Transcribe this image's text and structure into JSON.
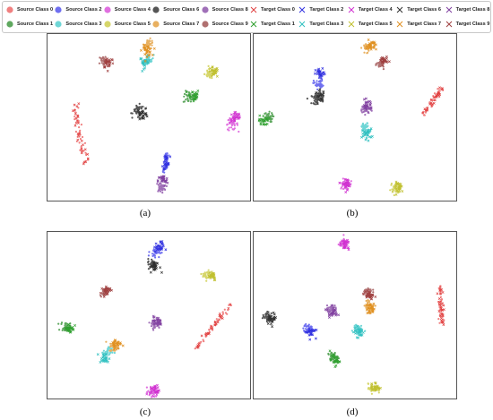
{
  "legend": {
    "entries": [
      {
        "label": "Source Class 0",
        "color": "#f08080",
        "marker": "dot"
      },
      {
        "label": "Source Class 1",
        "color": "#5fa85f",
        "marker": "dot"
      },
      {
        "label": "Source Class 2",
        "color": "#6f6ff0",
        "marker": "dot"
      },
      {
        "label": "Source Class 3",
        "color": "#6fd6d6",
        "marker": "dot"
      },
      {
        "label": "Source Class 4",
        "color": "#e070e0",
        "marker": "dot"
      },
      {
        "label": "Source Class 5",
        "color": "#d6d66a",
        "marker": "dot"
      },
      {
        "label": "Source Class 6",
        "color": "#555555",
        "marker": "dot"
      },
      {
        "label": "Source Class 7",
        "color": "#e8b060",
        "marker": "dot"
      },
      {
        "label": "Source Class 8",
        "color": "#a070b8",
        "marker": "dot"
      },
      {
        "label": "Source Class 9",
        "color": "#b07070",
        "marker": "dot"
      },
      {
        "label": "Target Class 0",
        "color": "#e04040",
        "marker": "x"
      },
      {
        "label": "Target Class 1",
        "color": "#30a030",
        "marker": "x"
      },
      {
        "label": "Target Class 2",
        "color": "#3030e0",
        "marker": "x"
      },
      {
        "label": "Target Class 3",
        "color": "#30c0c0",
        "marker": "x"
      },
      {
        "label": "Target Class 4",
        "color": "#d030d0",
        "marker": "x"
      },
      {
        "label": "Target Class 5",
        "color": "#c0c030",
        "marker": "x"
      },
      {
        "label": "Target Class 6",
        "color": "#303030",
        "marker": "x"
      },
      {
        "label": "Target Class 7",
        "color": "#e09020",
        "marker": "x"
      },
      {
        "label": "Target Class 8",
        "color": "#8040a0",
        "marker": "x"
      },
      {
        "label": "Target Class 9",
        "color": "#a04040",
        "marker": "x"
      }
    ]
  },
  "captions": {
    "a": "(a)",
    "b": "(b)",
    "c": "(c)",
    "d": "(d)"
  },
  "chart_data": [
    {
      "type": "scatter",
      "panel": "a",
      "xlim": [
        0,
        1
      ],
      "ylim": [
        0,
        1
      ],
      "grid": false,
      "clusters": [
        {
          "cls": 0,
          "src": [
            0.13,
            0.59
          ],
          "tgt": [
            0.19,
            0.22
          ],
          "spread": 0.028
        },
        {
          "cls": 1,
          "src": [
            0.7,
            0.62
          ],
          "tgt": [
            0.72,
            0.63
          ],
          "spread": 0.015
        },
        {
          "cls": 2,
          "src": [
            0.58,
            0.18
          ],
          "tgt": [
            0.59,
            0.28
          ],
          "spread": 0.015
        },
        {
          "cls": 3,
          "src": [
            0.5,
            0.85
          ],
          "tgt": [
            0.48,
            0.83
          ],
          "spread": 0.012
        },
        {
          "cls": 4,
          "src": [
            0.91,
            0.46
          ],
          "tgt": [
            0.93,
            0.5
          ],
          "spread": 0.015
        },
        {
          "cls": 5,
          "src": [
            0.8,
            0.76
          ],
          "tgt": [
            0.82,
            0.77
          ],
          "spread": 0.012
        },
        {
          "cls": 6,
          "src": [
            0.45,
            0.54
          ],
          "tgt": [
            0.47,
            0.52
          ],
          "spread": 0.014
        },
        {
          "cls": 7,
          "src": [
            0.5,
            0.94
          ],
          "tgt": [
            0.49,
            0.9
          ],
          "spread": 0.012
        },
        {
          "cls": 8,
          "src": [
            0.56,
            0.08
          ],
          "tgt": [
            0.57,
            0.12
          ],
          "spread": 0.012
        },
        {
          "cls": 9,
          "src": [
            0.28,
            0.84
          ],
          "tgt": [
            0.3,
            0.83
          ],
          "spread": 0.014
        }
      ]
    },
    {
      "type": "scatter",
      "panel": "b",
      "xlim": [
        0,
        1
      ],
      "ylim": [
        0,
        1
      ],
      "grid": false,
      "clusters": [
        {
          "cls": 0,
          "src": [
            0.84,
            0.52
          ],
          "tgt": [
            0.93,
            0.68
          ],
          "spread": 0.02
        },
        {
          "cls": 1,
          "src": [
            0.07,
            0.5
          ],
          "tgt": [
            0.05,
            0.48
          ],
          "spread": 0.012
        },
        {
          "cls": 2,
          "src": [
            0.32,
            0.7
          ],
          "tgt": [
            0.33,
            0.76
          ],
          "spread": 0.012
        },
        {
          "cls": 3,
          "src": [
            0.55,
            0.44
          ],
          "tgt": [
            0.56,
            0.4
          ],
          "spread": 0.012
        },
        {
          "cls": 4,
          "src": [
            0.45,
            0.1
          ],
          "tgt": [
            0.46,
            0.1
          ],
          "spread": 0.012
        },
        {
          "cls": 5,
          "src": [
            0.7,
            0.07
          ],
          "tgt": [
            0.72,
            0.08
          ],
          "spread": 0.012
        },
        {
          "cls": 6,
          "src": [
            0.31,
            0.61
          ],
          "tgt": [
            0.33,
            0.63
          ],
          "spread": 0.012
        },
        {
          "cls": 7,
          "src": [
            0.56,
            0.92
          ],
          "tgt": [
            0.58,
            0.93
          ],
          "spread": 0.012
        },
        {
          "cls": 8,
          "src": [
            0.55,
            0.55
          ],
          "tgt": [
            0.56,
            0.57
          ],
          "spread": 0.012
        },
        {
          "cls": 9,
          "src": [
            0.63,
            0.82
          ],
          "tgt": [
            0.64,
            0.84
          ],
          "spread": 0.01
        }
      ]
    },
    {
      "type": "scatter",
      "panel": "c",
      "xlim": [
        0,
        1
      ],
      "ylim": [
        0,
        1
      ],
      "grid": false,
      "clusters": [
        {
          "cls": 0,
          "src": [
            0.73,
            0.3
          ],
          "tgt": [
            0.9,
            0.56
          ],
          "spread": 0.015
        },
        {
          "cls": 1,
          "src": [
            0.09,
            0.43
          ],
          "tgt": [
            0.11,
            0.42
          ],
          "spread": 0.012
        },
        {
          "cls": 2,
          "src": [
            0.53,
            0.88
          ],
          "tgt": [
            0.55,
            0.91
          ],
          "spread": 0.012
        },
        {
          "cls": 3,
          "src": [
            0.3,
            0.28
          ],
          "tgt": [
            0.28,
            0.24
          ],
          "spread": 0.012
        },
        {
          "cls": 4,
          "src": [
            0.52,
            0.04
          ],
          "tgt": [
            0.53,
            0.05
          ],
          "spread": 0.012
        },
        {
          "cls": 5,
          "src": [
            0.79,
            0.74
          ],
          "tgt": [
            0.81,
            0.74
          ],
          "spread": 0.012
        },
        {
          "cls": 6,
          "src": [
            0.52,
            0.81
          ],
          "tgt": [
            0.53,
            0.79
          ],
          "spread": 0.012
        },
        {
          "cls": 7,
          "src": [
            0.33,
            0.31
          ],
          "tgt": [
            0.34,
            0.33
          ],
          "spread": 0.012
        },
        {
          "cls": 8,
          "src": [
            0.53,
            0.45
          ],
          "tgt": [
            0.54,
            0.46
          ],
          "spread": 0.012
        },
        {
          "cls": 9,
          "src": [
            0.28,
            0.64
          ],
          "tgt": [
            0.29,
            0.65
          ],
          "spread": 0.01
        }
      ]
    },
    {
      "type": "scatter",
      "panel": "d",
      "xlim": [
        0,
        1
      ],
      "ylim": [
        0,
        1
      ],
      "grid": false,
      "clusters": [
        {
          "cls": 0,
          "src": [
            0.92,
            0.67
          ],
          "tgt": [
            0.93,
            0.45
          ],
          "spread": 0.018
        },
        {
          "cls": 1,
          "src": [
            0.39,
            0.25
          ],
          "tgt": [
            0.4,
            0.23
          ],
          "spread": 0.012
        },
        {
          "cls": 2,
          "src": [
            0.27,
            0.42
          ],
          "tgt": [
            0.28,
            0.4
          ],
          "spread": 0.012
        },
        {
          "cls": 3,
          "src": [
            0.51,
            0.42
          ],
          "tgt": [
            0.52,
            0.4
          ],
          "spread": 0.012
        },
        {
          "cls": 4,
          "src": [
            0.44,
            0.93
          ],
          "tgt": [
            0.45,
            0.92
          ],
          "spread": 0.012
        },
        {
          "cls": 5,
          "src": [
            0.59,
            0.06
          ],
          "tgt": [
            0.6,
            0.07
          ],
          "spread": 0.012
        },
        {
          "cls": 6,
          "src": [
            0.07,
            0.49
          ],
          "tgt": [
            0.09,
            0.48
          ],
          "spread": 0.012
        },
        {
          "cls": 7,
          "src": [
            0.57,
            0.56
          ],
          "tgt": [
            0.58,
            0.54
          ],
          "spread": 0.012
        },
        {
          "cls": 8,
          "src": [
            0.38,
            0.54
          ],
          "tgt": [
            0.39,
            0.52
          ],
          "spread": 0.012
        },
        {
          "cls": 9,
          "src": [
            0.56,
            0.64
          ],
          "tgt": [
            0.57,
            0.62
          ],
          "spread": 0.012
        }
      ]
    }
  ]
}
